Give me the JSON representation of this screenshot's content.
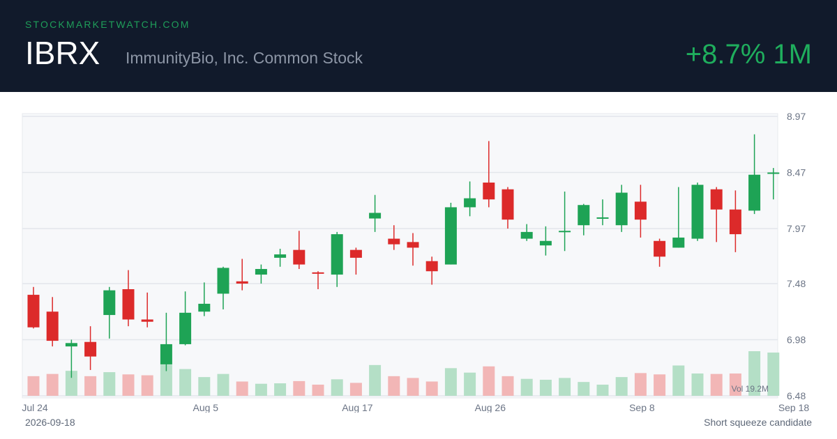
{
  "header": {
    "site": "STOCKMARKETWATCH.COM",
    "ticker": "IBRX",
    "company": "ImmunityBio, Inc. Common Stock",
    "change": "+8.7% 1M"
  },
  "footer": {
    "date": "2026-09-18",
    "note": "Short squeeze candidate"
  },
  "colors": {
    "up": "#1ea355",
    "down": "#dc2a2a",
    "up_volume": "#b4dfc6",
    "down_volume": "#f2b6b6",
    "header_bg": "#111a2b",
    "accent": "#1fae5d"
  },
  "chart_data": {
    "type": "candlestick",
    "y_ticks": [
      "8.97",
      "8.47",
      "7.97",
      "7.48",
      "6.98",
      "6.48"
    ],
    "ylim": [
      6.48,
      8.97
    ],
    "x_labels": [
      {
        "index": 0,
        "label": "Jul 24"
      },
      {
        "index": 9,
        "label": "Aug 5"
      },
      {
        "index": 17,
        "label": "Aug 17"
      },
      {
        "index": 24,
        "label": "Aug 26"
      },
      {
        "index": 32,
        "label": "Sep 8"
      },
      {
        "index": 40,
        "label": "Sep 18"
      }
    ],
    "volume_label": "Vol 19.2M",
    "volume_max": 1.0,
    "candles": [
      {
        "o": 7.38,
        "h": 7.45,
        "l": 7.08,
        "c": 7.09,
        "v": 0.44
      },
      {
        "o": 7.23,
        "h": 7.36,
        "l": 6.92,
        "c": 6.97,
        "v": 0.49
      },
      {
        "o": 6.92,
        "h": 6.98,
        "l": 6.64,
        "c": 6.95,
        "v": 0.56
      },
      {
        "o": 6.96,
        "h": 7.1,
        "l": 6.71,
        "c": 6.83,
        "v": 0.44
      },
      {
        "o": 7.2,
        "h": 7.45,
        "l": 6.99,
        "c": 7.42,
        "v": 0.53
      },
      {
        "o": 7.43,
        "h": 7.6,
        "l": 7.1,
        "c": 7.16,
        "v": 0.48
      },
      {
        "o": 7.16,
        "h": 7.4,
        "l": 7.09,
        "c": 7.14,
        "v": 0.46
      },
      {
        "o": 6.76,
        "h": 7.22,
        "l": 6.7,
        "c": 6.94,
        "v": 0.7
      },
      {
        "o": 6.94,
        "h": 7.41,
        "l": 6.93,
        "c": 7.22,
        "v": 0.6
      },
      {
        "o": 7.23,
        "h": 7.49,
        "l": 7.19,
        "c": 7.3,
        "v": 0.42
      },
      {
        "o": 7.39,
        "h": 7.63,
        "l": 7.25,
        "c": 7.62,
        "v": 0.49
      },
      {
        "o": 7.5,
        "h": 7.7,
        "l": 7.42,
        "c": 7.48,
        "v": 0.32
      },
      {
        "o": 7.56,
        "h": 7.65,
        "l": 7.48,
        "c": 7.61,
        "v": 0.27
      },
      {
        "o": 7.71,
        "h": 7.79,
        "l": 7.63,
        "c": 7.74,
        "v": 0.28
      },
      {
        "o": 7.78,
        "h": 7.95,
        "l": 7.61,
        "c": 7.65,
        "v": 0.33
      },
      {
        "o": 7.58,
        "h": 7.59,
        "l": 7.43,
        "c": 7.57,
        "v": 0.25
      },
      {
        "o": 7.56,
        "h": 7.94,
        "l": 7.45,
        "c": 7.92,
        "v": 0.37
      },
      {
        "o": 7.78,
        "h": 7.8,
        "l": 7.56,
        "c": 7.71,
        "v": 0.29
      },
      {
        "o": 8.06,
        "h": 8.27,
        "l": 7.94,
        "c": 8.11,
        "v": 0.69
      },
      {
        "o": 7.88,
        "h": 8.0,
        "l": 7.78,
        "c": 7.83,
        "v": 0.44
      },
      {
        "o": 7.85,
        "h": 7.93,
        "l": 7.64,
        "c": 7.8,
        "v": 0.4
      },
      {
        "o": 7.68,
        "h": 7.72,
        "l": 7.47,
        "c": 7.59,
        "v": 0.32
      },
      {
        "o": 7.65,
        "h": 8.2,
        "l": 7.65,
        "c": 8.16,
        "v": 0.62
      },
      {
        "o": 8.16,
        "h": 8.39,
        "l": 8.08,
        "c": 8.24,
        "v": 0.52
      },
      {
        "o": 8.38,
        "h": 8.75,
        "l": 8.16,
        "c": 8.23,
        "v": 0.66
      },
      {
        "o": 8.32,
        "h": 8.34,
        "l": 7.97,
        "c": 8.05,
        "v": 0.44
      },
      {
        "o": 7.88,
        "h": 8.01,
        "l": 7.86,
        "c": 7.94,
        "v": 0.38
      },
      {
        "o": 7.82,
        "h": 7.99,
        "l": 7.73,
        "c": 7.86,
        "v": 0.36
      },
      {
        "o": 7.94,
        "h": 8.3,
        "l": 7.77,
        "c": 7.95,
        "v": 0.4
      },
      {
        "o": 8.0,
        "h": 8.19,
        "l": 7.91,
        "c": 8.18,
        "v": 0.31
      },
      {
        "o": 8.06,
        "h": 8.23,
        "l": 8.0,
        "c": 8.07,
        "v": 0.25
      },
      {
        "o": 8.0,
        "h": 8.36,
        "l": 7.94,
        "c": 8.29,
        "v": 0.42
      },
      {
        "o": 8.21,
        "h": 8.36,
        "l": 7.89,
        "c": 8.05,
        "v": 0.51
      },
      {
        "o": 7.86,
        "h": 7.88,
        "l": 7.63,
        "c": 7.72,
        "v": 0.48
      },
      {
        "o": 7.8,
        "h": 8.34,
        "l": 7.8,
        "c": 7.89,
        "v": 0.68
      },
      {
        "o": 7.88,
        "h": 8.38,
        "l": 7.86,
        "c": 8.36,
        "v": 0.5
      },
      {
        "o": 8.32,
        "h": 8.34,
        "l": 7.85,
        "c": 8.14,
        "v": 0.49
      },
      {
        "o": 8.14,
        "h": 8.31,
        "l": 7.76,
        "c": 7.92,
        "v": 0.5
      },
      {
        "o": 8.13,
        "h": 8.81,
        "l": 8.1,
        "c": 8.45,
        "v": 1.0
      },
      {
        "o": 8.46,
        "h": 8.51,
        "l": 8.23,
        "c": 8.47,
        "v": 0.97
      }
    ]
  }
}
